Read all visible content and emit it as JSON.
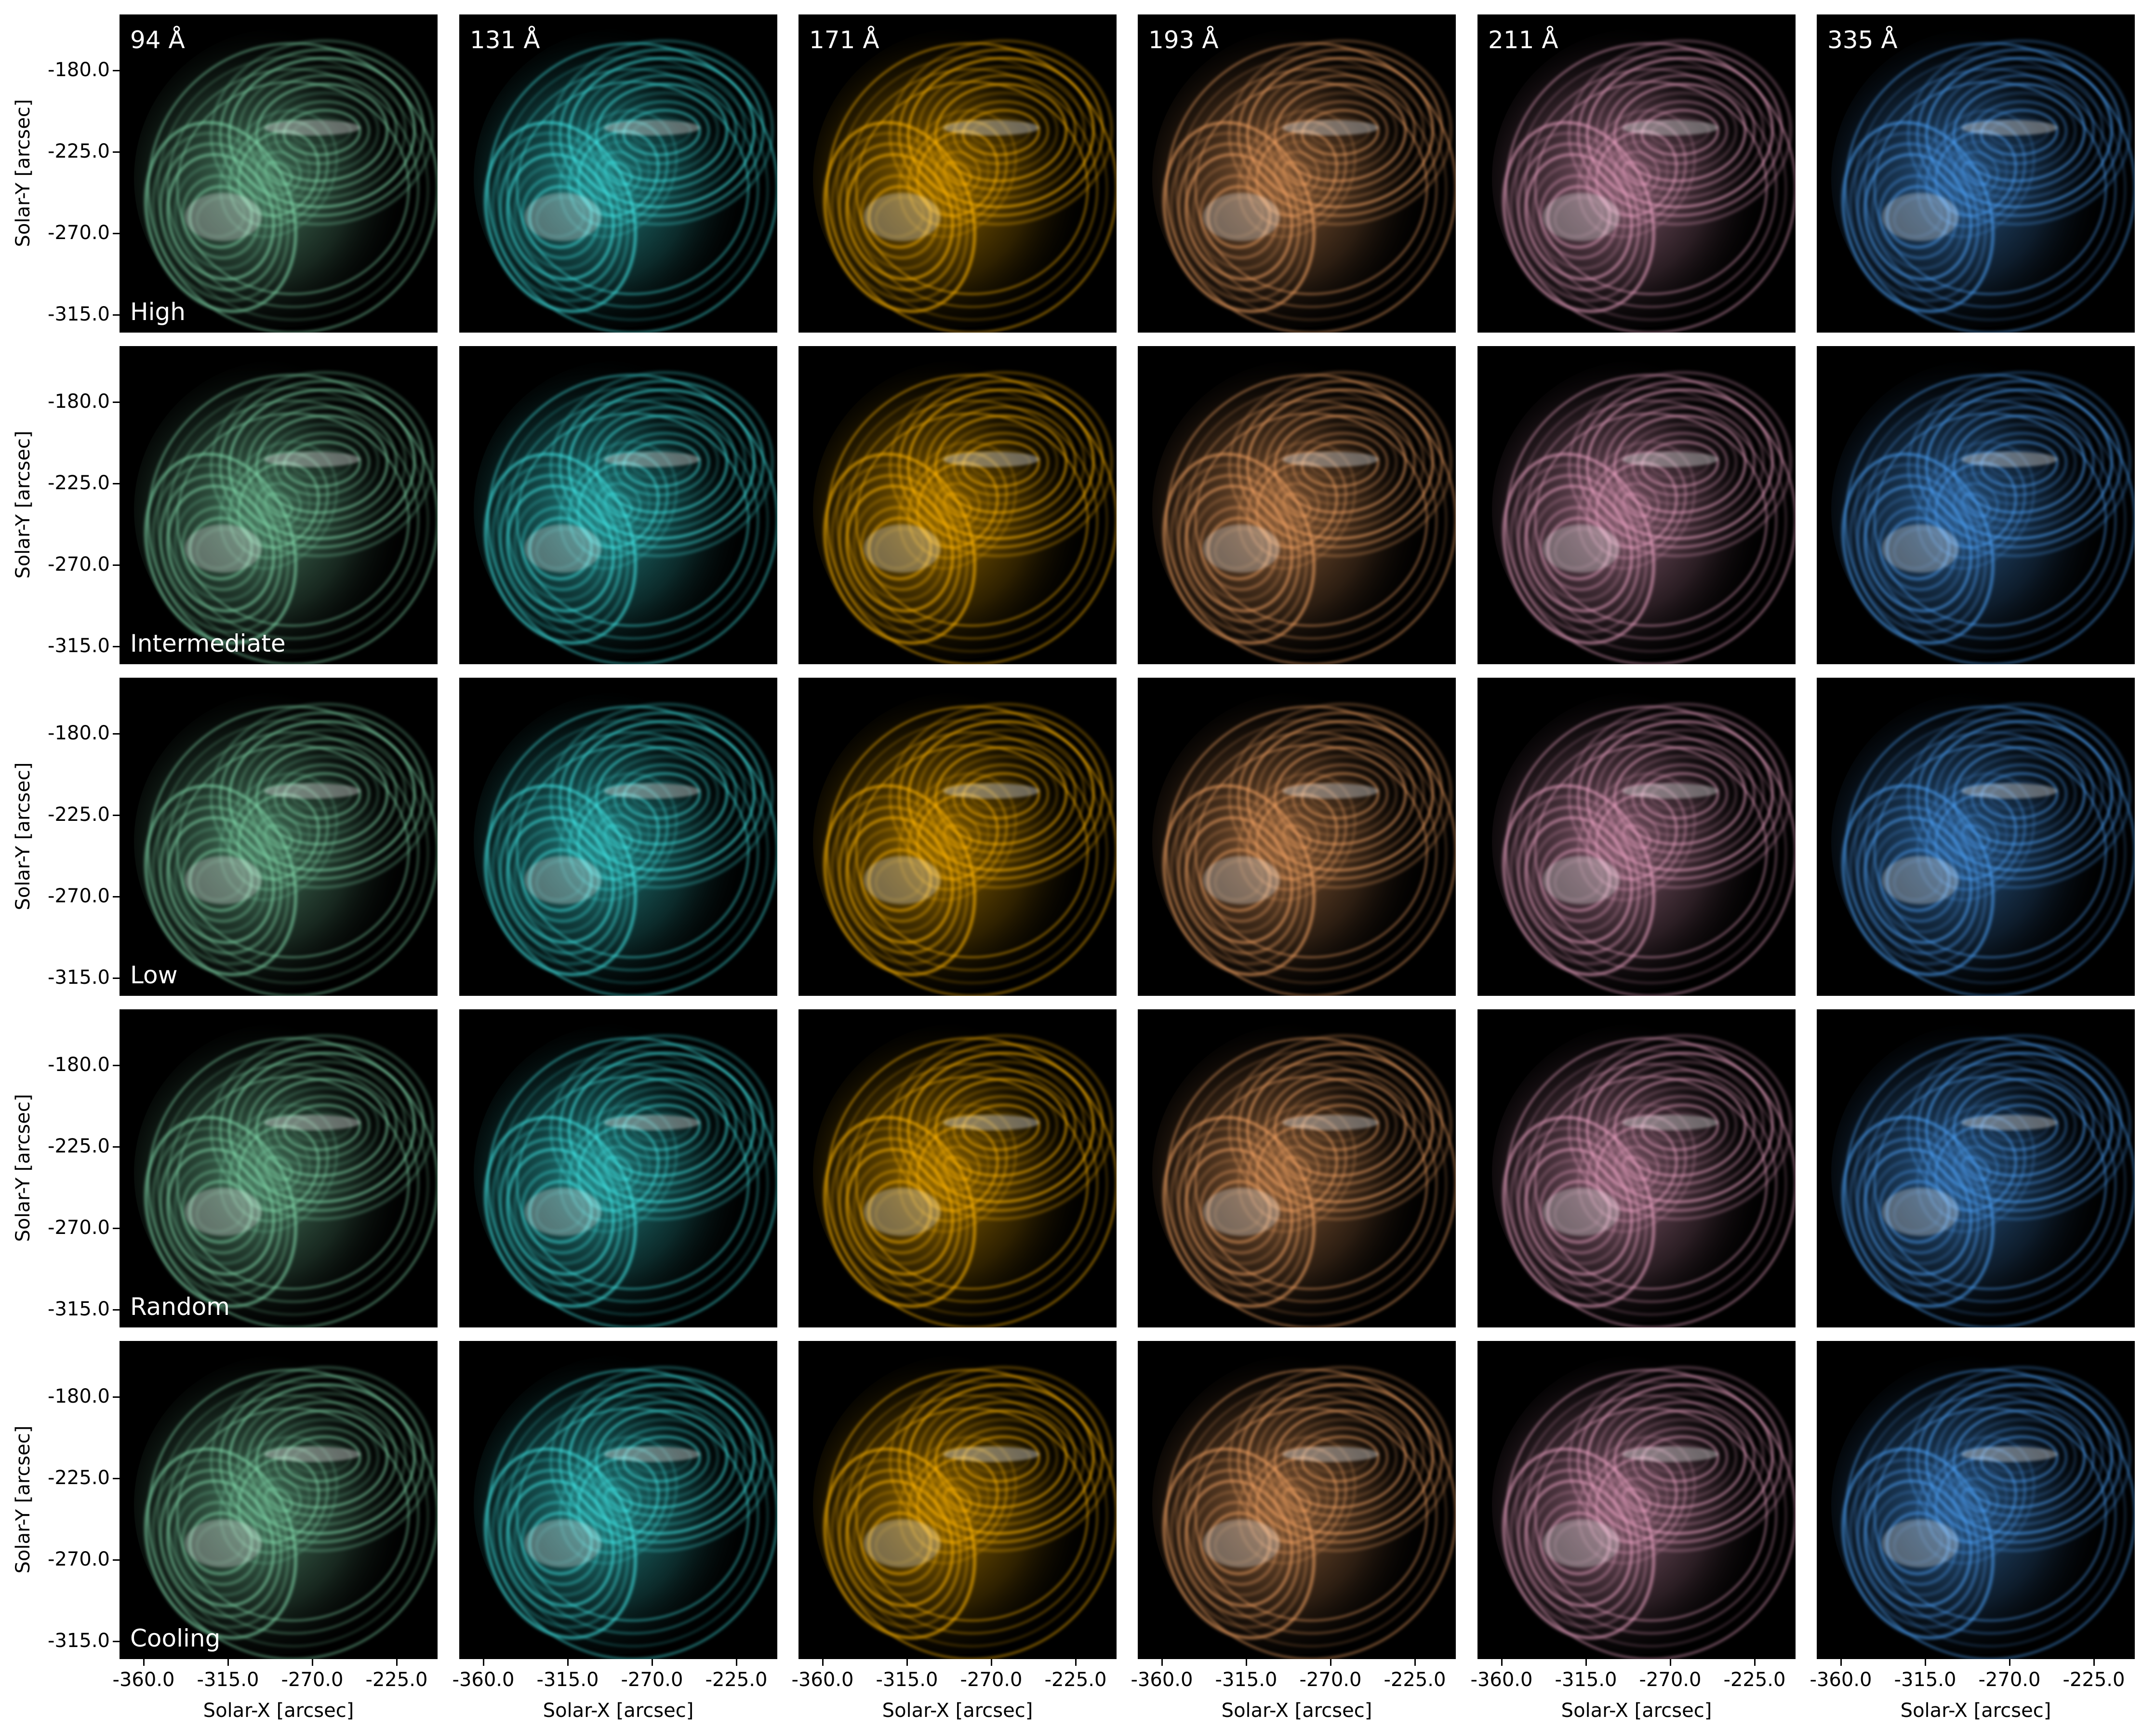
{
  "wavelengths": [
    {
      "label": "94 Å",
      "color": "#7fd6a8"
    },
    {
      "label": "131 Å",
      "color": "#3fe6e6"
    },
    {
      "label": "171 Å",
      "color": "#ffb400"
    },
    {
      "label": "193 Å",
      "color": "#f0a060"
    },
    {
      "label": "211 Å",
      "color": "#e8a0c0"
    },
    {
      "label": "335 Å",
      "color": "#4a9cf0"
    }
  ],
  "heating_rows": [
    {
      "label": "High"
    },
    {
      "label": "Intermediate"
    },
    {
      "label": "Low"
    },
    {
      "label": "Random"
    },
    {
      "label": "Cooling"
    }
  ],
  "axes": {
    "ylabel": "Solar-Y [arcsec]",
    "xlabel": "Solar-X [arcsec]",
    "yticks": [
      "-180.0",
      "-225.0",
      "-270.0",
      "-315.0"
    ],
    "xticks": [
      "-360.0",
      "-315.0",
      "-270.0",
      "-225.0"
    ]
  },
  "image_icon": "coronal-loops-image"
}
